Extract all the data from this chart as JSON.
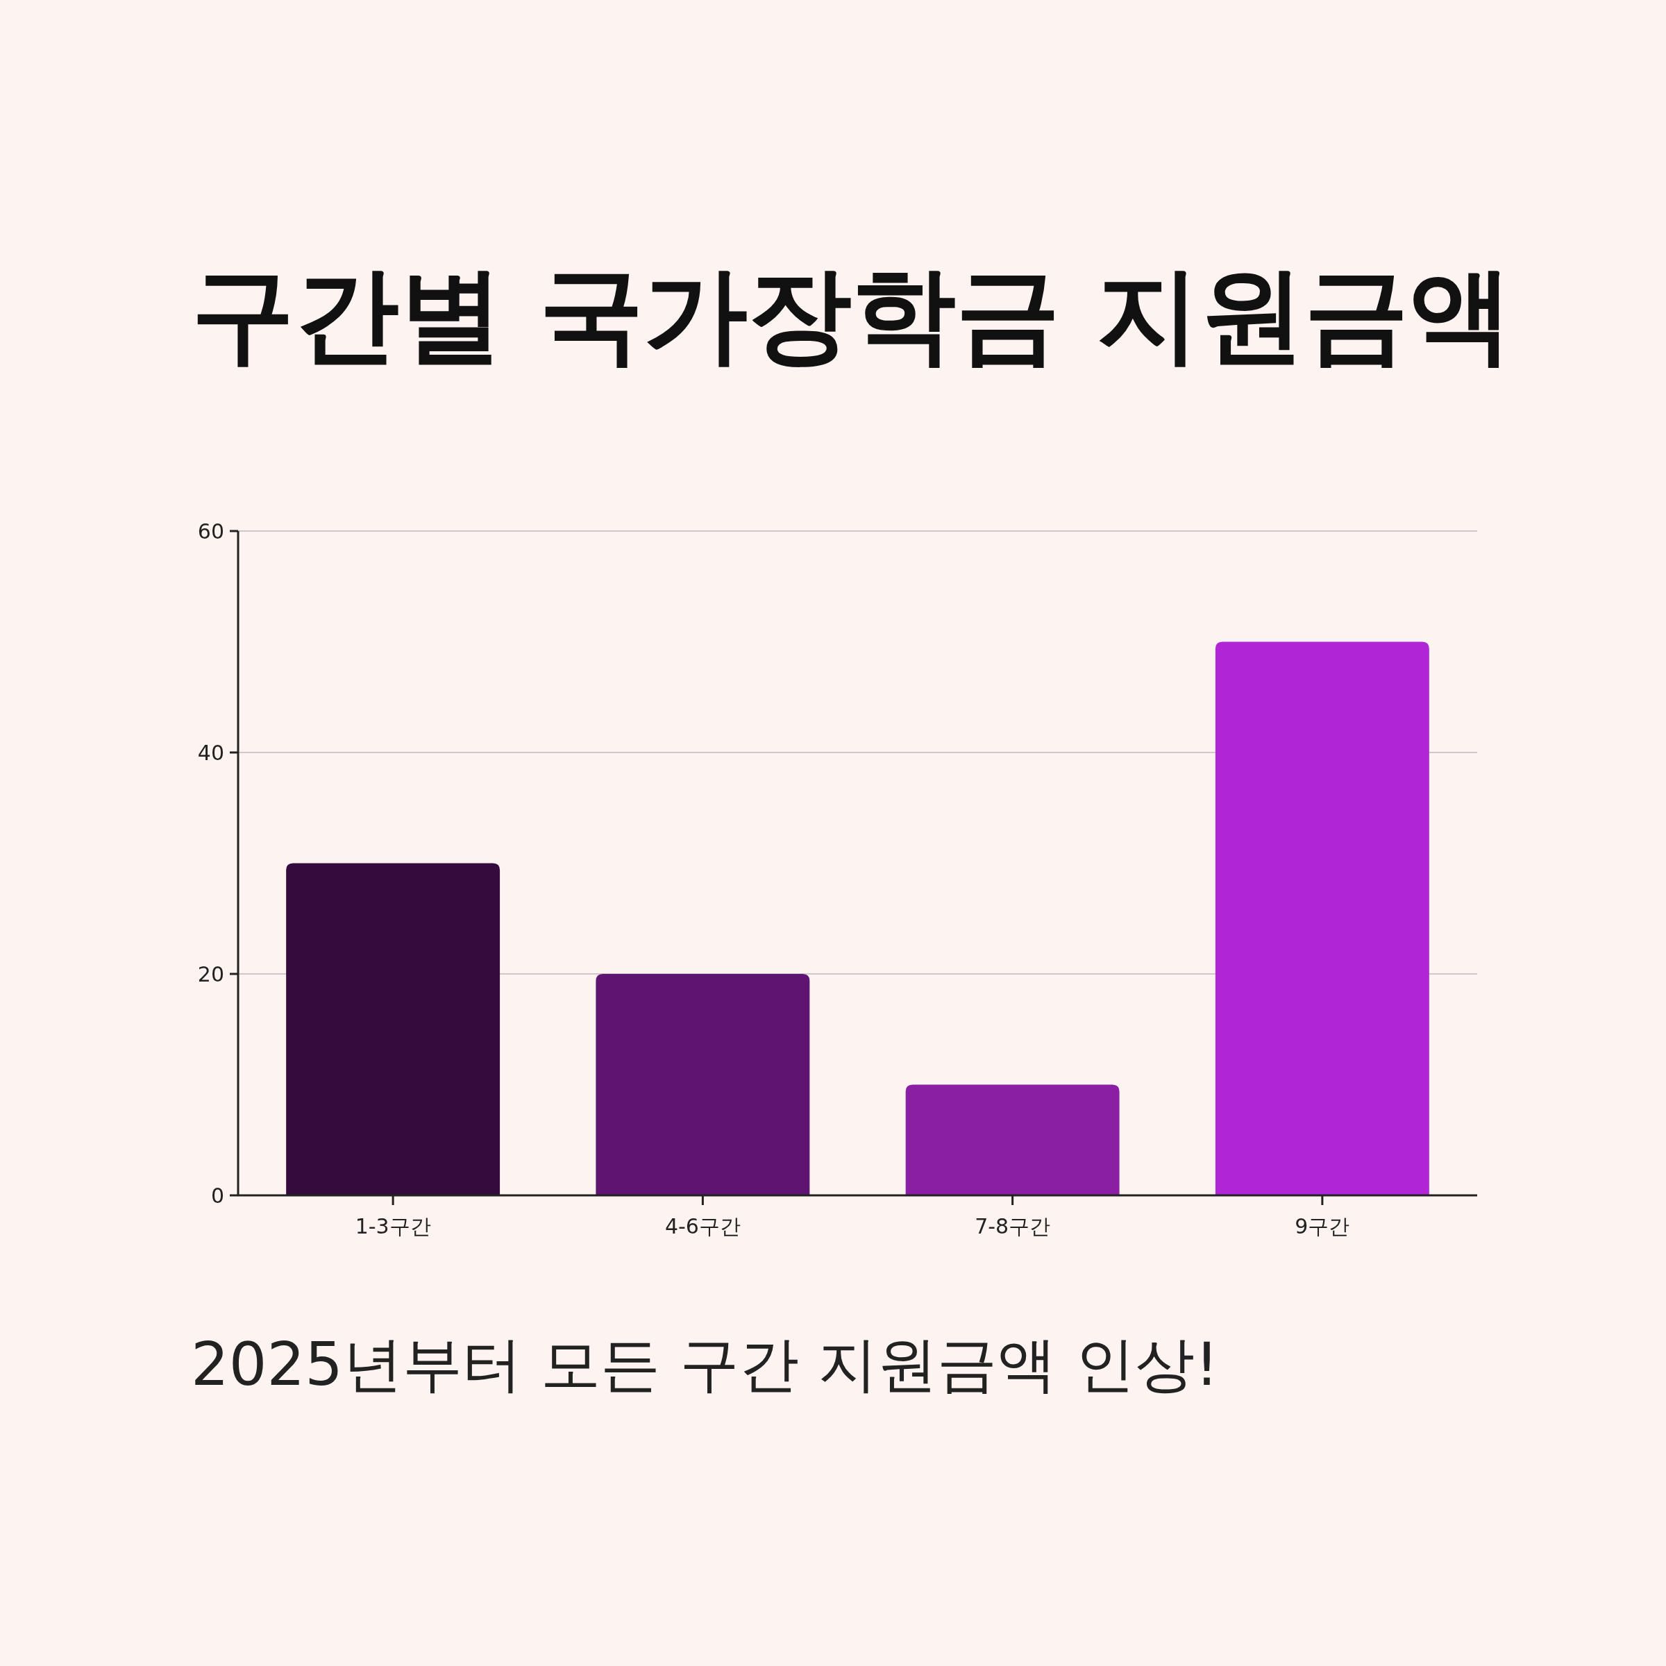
{
  "chart_data": {
    "type": "bar",
    "title": "구간별 국가장학금 지원금액",
    "categories": [
      "1-3구간",
      "4-6구간",
      "7-8구간",
      "9구간"
    ],
    "values": [
      30,
      20,
      10,
      50
    ],
    "colors": [
      "#350b3e",
      "#5e1470",
      "#8a1fa3",
      "#b026d6"
    ],
    "ylim": [
      0,
      60
    ],
    "yticks": [
      0,
      20,
      40,
      60
    ],
    "grid": "y",
    "annotations": [
      "2025년부터 모든 구간 지원금액 인상!"
    ]
  }
}
